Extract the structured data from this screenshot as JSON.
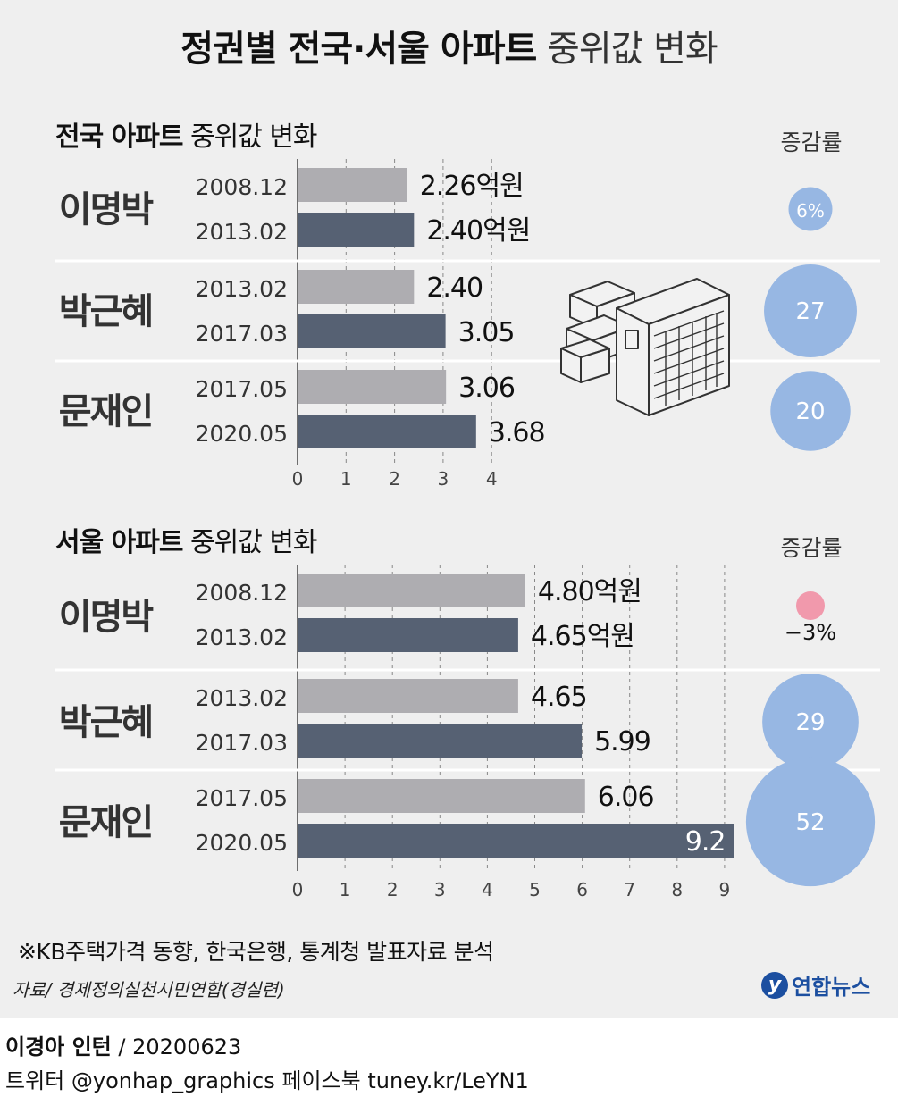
{
  "title_bold": "정권별 전국·서울 아파트",
  "title_rest": "중위값 변화",
  "rate_header": "증감률",
  "note": "※KB주택가격 동향, 한국은행, 통계청 발표자료 분석",
  "source": "자료/ 경제정의실천시민연합(경실련)",
  "logo": "연합뉴스",
  "logo_mark": "y",
  "credit": "이경아 인턴",
  "credit_date": "/ 20200623",
  "social": "트위터 @yonhap_graphics  페이스북 tuney.kr/LeYN1",
  "colors": {
    "before": "#aeadb1",
    "after": "#566173",
    "rate_positive": "#97b7e3",
    "rate_negative": "#f199ac",
    "background": "#efefef"
  },
  "chart_data": [
    {
      "type": "bar",
      "title_bold": "전국 아파트",
      "title_rest": "중위값 변화",
      "unit": "억원",
      "xlim": [
        0,
        4
      ],
      "ticks": [
        "0",
        "1",
        "2",
        "3",
        "4"
      ],
      "groups": [
        {
          "name": "이명박",
          "rate": 6,
          "rate_label": "6%",
          "bars": [
            {
              "date": "2008.12",
              "value": 2.26,
              "label": "2.26억원"
            },
            {
              "date": "2013.02",
              "value": 2.4,
              "label": "2.40억원"
            }
          ]
        },
        {
          "name": "박근혜",
          "rate": 27,
          "rate_label": "27",
          "bars": [
            {
              "date": "2013.02",
              "value": 2.4,
              "label": "2.40"
            },
            {
              "date": "2017.03",
              "value": 3.05,
              "label": "3.05"
            }
          ]
        },
        {
          "name": "문재인",
          "rate": 20,
          "rate_label": "20",
          "bars": [
            {
              "date": "2017.05",
              "value": 3.06,
              "label": "3.06"
            },
            {
              "date": "2020.05",
              "value": 3.68,
              "label": "3.68"
            }
          ]
        }
      ]
    },
    {
      "type": "bar",
      "title_bold": "서울 아파트",
      "title_rest": "중위값 변화",
      "unit": "억원",
      "xlim": [
        0,
        9
      ],
      "ticks": [
        "0",
        "1",
        "2",
        "3",
        "4",
        "5",
        "6",
        "7",
        "8",
        "9"
      ],
      "groups": [
        {
          "name": "이명박",
          "rate": -3,
          "rate_label": "−3%",
          "bars": [
            {
              "date": "2008.12",
              "value": 4.8,
              "label": "4.80억원"
            },
            {
              "date": "2013.02",
              "value": 4.65,
              "label": "4.65억원"
            }
          ]
        },
        {
          "name": "박근혜",
          "rate": 29,
          "rate_label": "29",
          "bars": [
            {
              "date": "2013.02",
              "value": 4.65,
              "label": "4.65"
            },
            {
              "date": "2017.03",
              "value": 5.99,
              "label": "5.99"
            }
          ]
        },
        {
          "name": "문재인",
          "rate": 52,
          "rate_label": "52",
          "bars": [
            {
              "date": "2017.05",
              "value": 6.06,
              "label": "6.06"
            },
            {
              "date": "2020.05",
              "value": 9.2,
              "label": "9.2"
            }
          ]
        }
      ]
    }
  ]
}
